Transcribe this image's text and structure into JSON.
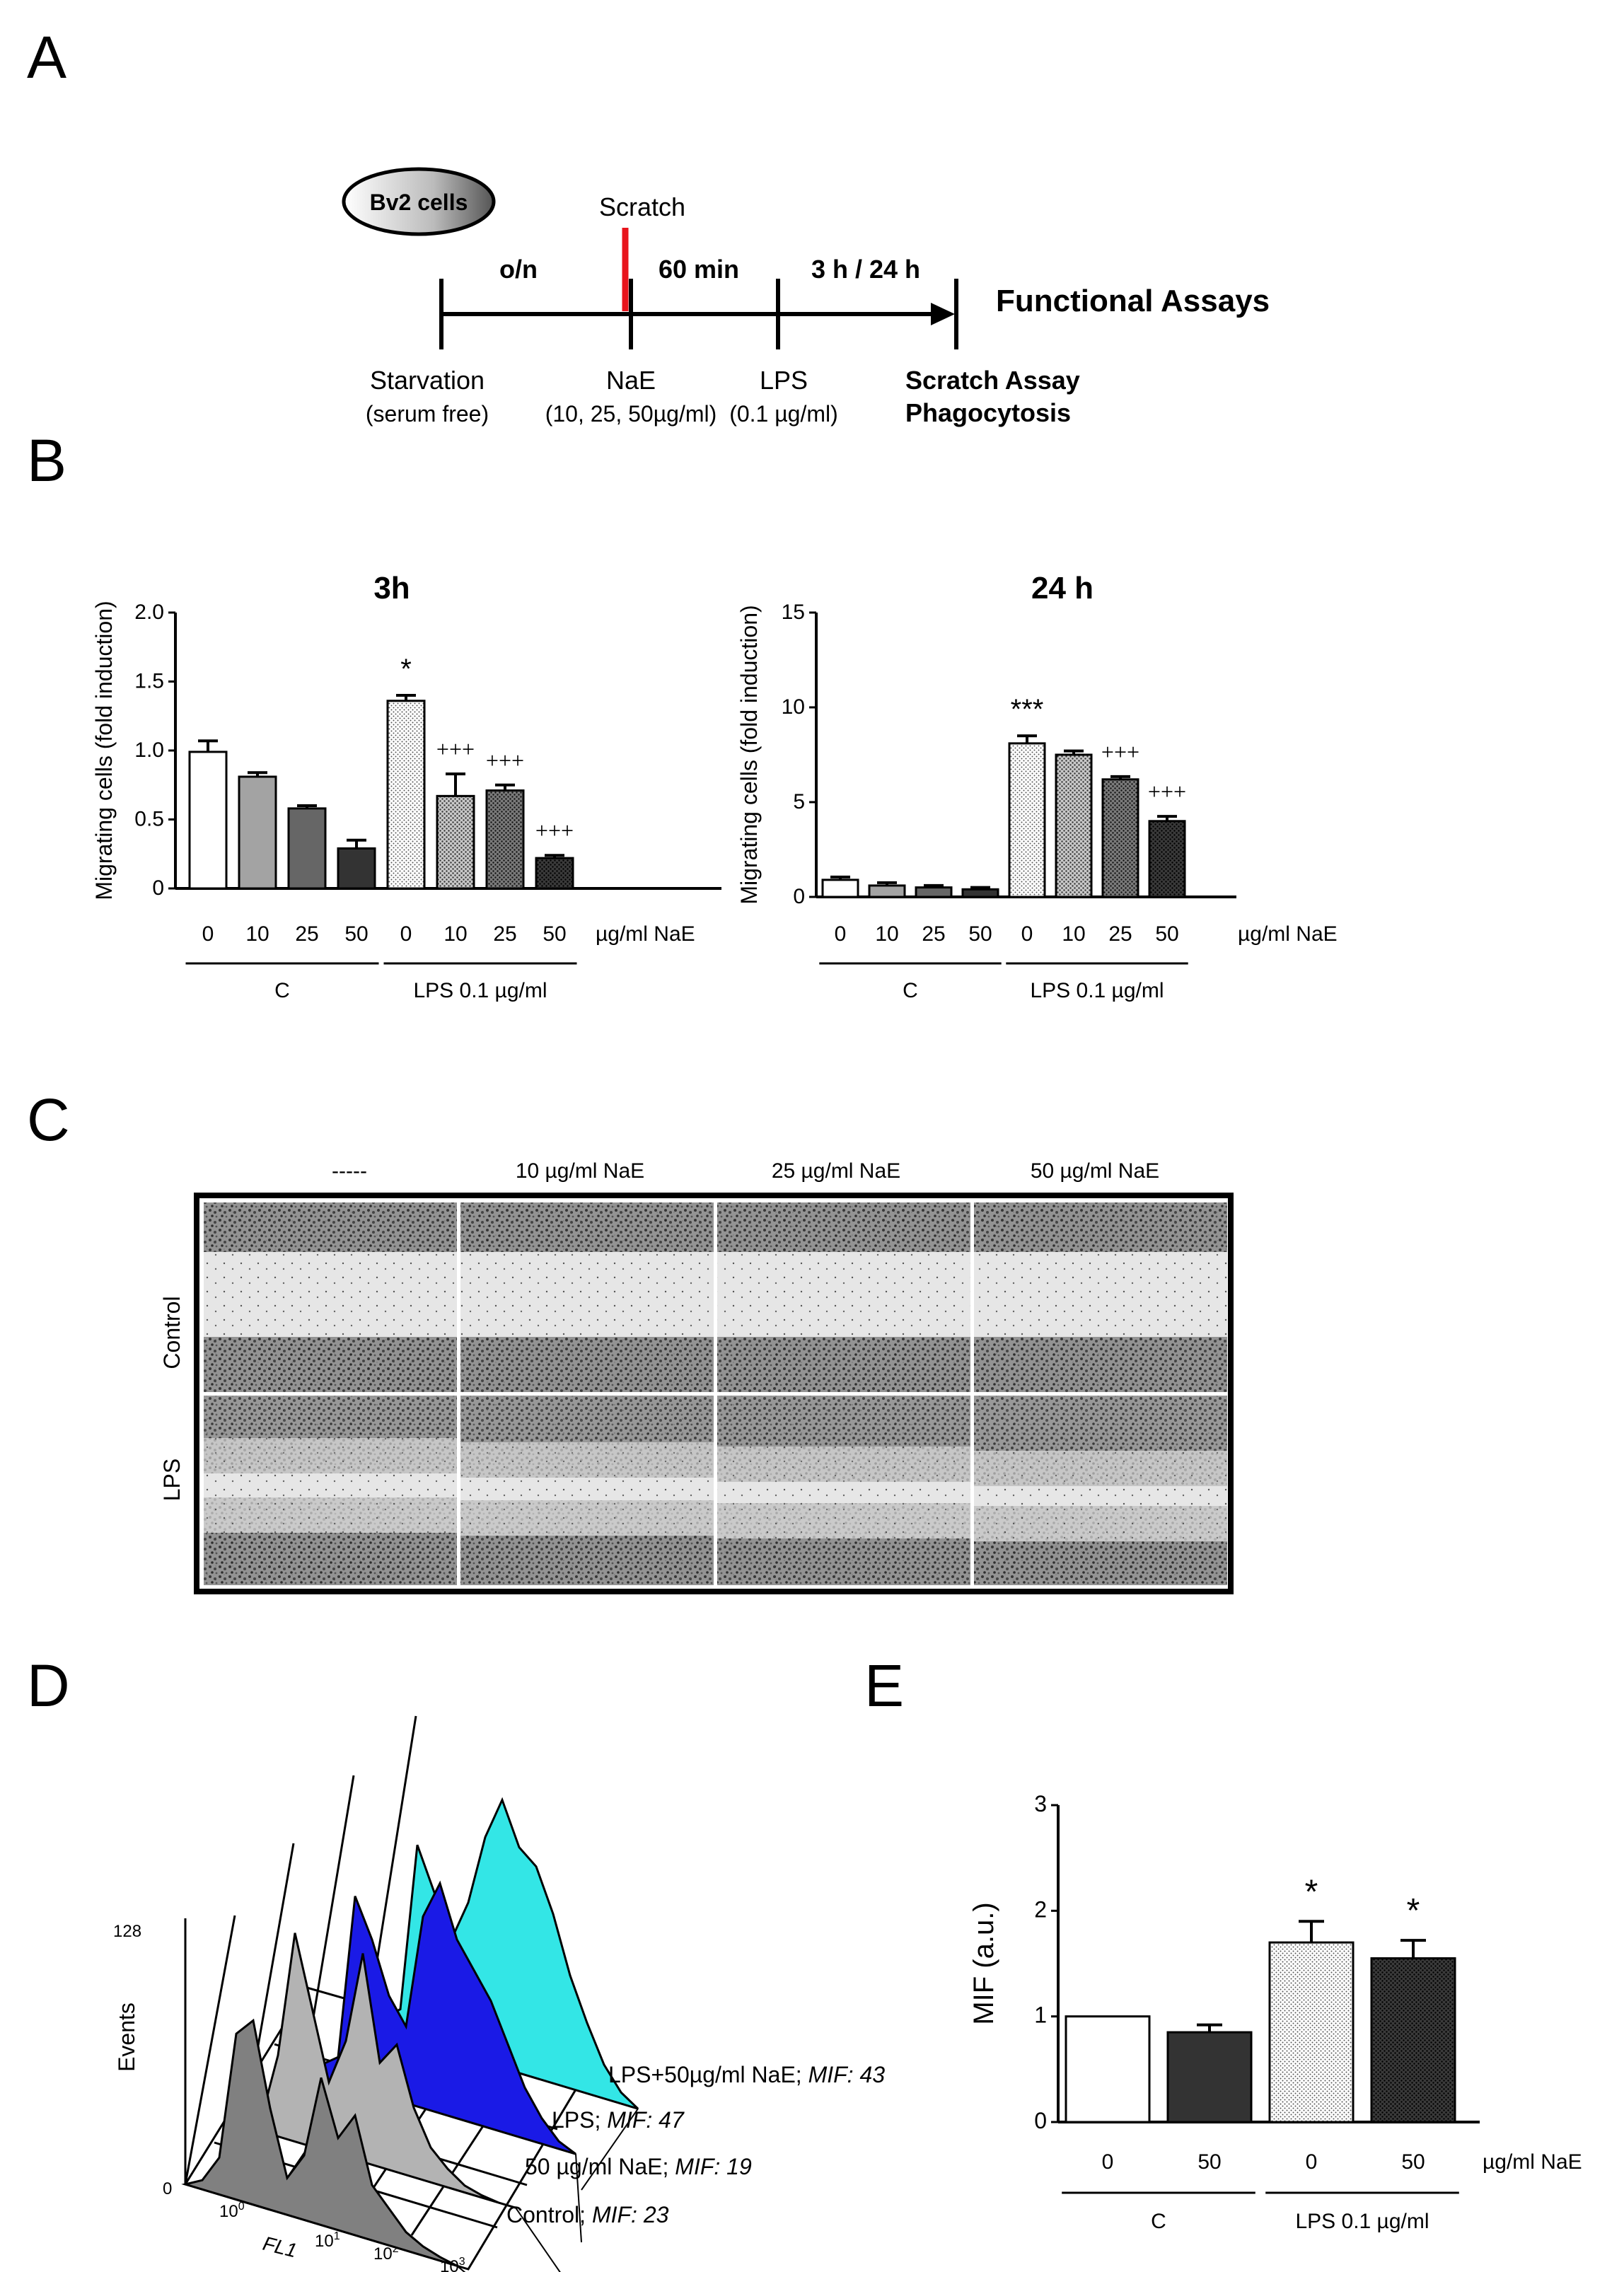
{
  "panels": {
    "A": "A",
    "B": "B",
    "C": "C",
    "D": "D",
    "E": "E"
  },
  "scheme": {
    "cell_label": "Bv2 cells",
    "scratch": "Scratch",
    "interval_1": "o/n",
    "interval_2": "60 min",
    "interval_3": "3 h / 24 h",
    "functional_assays": "Functional Assays",
    "step_starvation": "Starvation",
    "step_starvation_sub": "(serum free)",
    "step_nae": "NaE",
    "step_nae_sub": "(10, 25, 50µg/ml)",
    "step_lps": "LPS",
    "step_lps_sub": "(0.1 µg/ml)",
    "assay_1": "Scratch Assay",
    "assay_2": "Phagocytosis",
    "scratch_color": "#e8141c"
  },
  "micro": {
    "col_headers": [
      "-----",
      "10 µg/ml NaE",
      "25 µg/ml NaE",
      "50 µg/ml NaE"
    ],
    "row_labels": [
      "Control",
      "LPS"
    ]
  },
  "chart_data": [
    {
      "id": "B-3h",
      "type": "bar",
      "title": "3h",
      "ylabel": "Migrating cells (fold induction)",
      "ylim": [
        0,
        2.0
      ],
      "yticks": [
        "0",
        "0.5",
        "1.0",
        "1.5",
        "2.0"
      ],
      "categories": [
        "0",
        "10",
        "25",
        "50",
        "0",
        "10",
        "25",
        "50"
      ],
      "x_unit": "µg/ml NaE",
      "groups": [
        {
          "label": "C",
          "from": 0,
          "to": 3
        },
        {
          "label": "LPS 0.1 µg/ml",
          "from": 4,
          "to": 7
        }
      ],
      "values": [
        0.99,
        0.81,
        0.58,
        0.29,
        1.36,
        0.67,
        0.71,
        0.22
      ],
      "errors": [
        0.08,
        0.03,
        0.02,
        0.06,
        0.04,
        0.16,
        0.04,
        0.02
      ],
      "annotations": [
        "",
        "",
        "",
        "",
        "*",
        "+++",
        "+++",
        "+++"
      ],
      "fills": [
        "white",
        "#a3a3a3",
        "#666666",
        "#333333",
        "dots-light",
        "dots-mid",
        "dots-dark",
        "dots-black"
      ]
    },
    {
      "id": "B-24h",
      "type": "bar",
      "title": "24 h",
      "ylabel": "Migrating cells (fold induction)",
      "ylim": [
        0,
        15
      ],
      "yticks": [
        "0",
        "5",
        "10",
        "15"
      ],
      "categories": [
        "0",
        "10",
        "25",
        "50",
        "0",
        "10",
        "25",
        "50"
      ],
      "x_unit": "µg/ml NaE",
      "groups": [
        {
          "label": "C",
          "from": 0,
          "to": 3
        },
        {
          "label": "LPS 0.1 µg/ml",
          "from": 4,
          "to": 7
        }
      ],
      "values": [
        0.9,
        0.6,
        0.5,
        0.4,
        8.1,
        7.5,
        6.2,
        4.0
      ],
      "errors": [
        0.15,
        0.15,
        0.1,
        0.1,
        0.4,
        0.2,
        0.15,
        0.25
      ],
      "annotations": [
        "",
        "",
        "",
        "",
        "***",
        "",
        "+++",
        "+++"
      ],
      "fills": [
        "white",
        "#a3a3a3",
        "#666666",
        "#333333",
        "dots-light",
        "dots-mid",
        "dots-dark",
        "dots-black"
      ]
    },
    {
      "id": "D",
      "type": "area",
      "ylabel": "Events",
      "xlabel": "FL1",
      "yticks": [
        "0",
        "128"
      ],
      "xticks": [
        "10^0",
        "10^1",
        "10^2",
        "10^3"
      ],
      "series": [
        {
          "label": "Control;",
          "mif_label": "MIF: 23",
          "color": "#808080"
        },
        {
          "label": "50 µg/ml NaE;",
          "mif_label": "MIF: 19",
          "color": "#b3b3b3"
        },
        {
          "label": "LPS;",
          "mif_label": "MIF: 47",
          "color": "#1a1ae6"
        },
        {
          "label": "LPS+50µg/ml NaE;",
          "mif_label": "MIF: 43",
          "color": "#33e6e6"
        }
      ]
    },
    {
      "id": "E",
      "type": "bar",
      "ylabel": "MIF  (a.u.)",
      "ylim": [
        0,
        3
      ],
      "yticks": [
        "0",
        "1",
        "2",
        "3"
      ],
      "categories": [
        "0",
        "50",
        "0",
        "50"
      ],
      "x_unit": "µg/ml NaE",
      "groups": [
        {
          "label": "C",
          "from": 0,
          "to": 1
        },
        {
          "label": "LPS 0.1 µg/ml",
          "from": 2,
          "to": 3
        }
      ],
      "values": [
        1.0,
        0.85,
        1.7,
        1.55
      ],
      "errors": [
        0.0,
        0.07,
        0.2,
        0.17
      ],
      "annotations": [
        "",
        "",
        "*",
        "*"
      ],
      "fills": [
        "white",
        "#333333",
        "dots-light",
        "dots-black"
      ]
    }
  ]
}
